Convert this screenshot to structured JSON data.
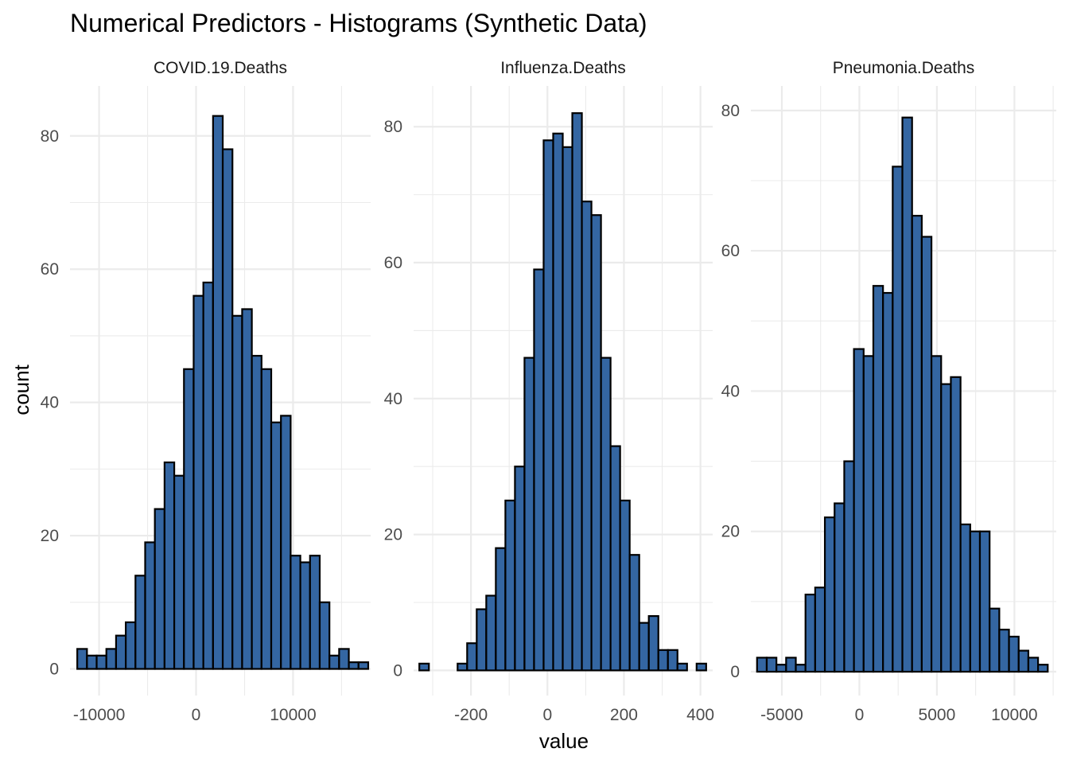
{
  "chart_data": {
    "type": "bar",
    "title": "Numerical Predictors - Histograms (Synthetic Data)",
    "xlabel": "value",
    "ylabel": "count",
    "bar_color": "#3466A2",
    "bar_outline": "#000000",
    "grid": true,
    "facets": [
      {
        "name": "COVID.19.Deaths",
        "xlim": [
          -13000,
          18000
        ],
        "ylim": [
          -4,
          87.5
        ],
        "xticks": [
          -10000,
          0,
          10000
        ],
        "xtick_labels": [
          "-10000",
          "0",
          "10000"
        ],
        "yticks": [
          0,
          20,
          40,
          60,
          80
        ],
        "ytick_labels": [
          "0",
          "20",
          "40",
          "60",
          "80"
        ],
        "bin_start": -12250,
        "bin_width": 1000,
        "counts": [
          3,
          2,
          2,
          3,
          5,
          7,
          14,
          19,
          24,
          31,
          29,
          45,
          56,
          58,
          83,
          78,
          53,
          54,
          47,
          45,
          37,
          38,
          17,
          16,
          17,
          10,
          2,
          3,
          1,
          1
        ]
      },
      {
        "name": "Influenza.Deaths",
        "xlim": [
          -350,
          432
        ],
        "ylim": [
          -3.7,
          86
        ],
        "xticks": [
          -200,
          0,
          200,
          400
        ],
        "xtick_labels": [
          "-200",
          "0",
          "200",
          "400"
        ],
        "yticks": [
          0,
          20,
          40,
          60,
          80
        ],
        "ytick_labels": [
          "0",
          "20",
          "40",
          "60",
          "80"
        ],
        "bin_start": -335,
        "bin_width": 25,
        "counts": [
          1,
          0,
          0,
          0,
          1,
          4,
          9,
          11,
          18,
          25,
          30,
          46,
          59,
          78,
          79,
          77,
          82,
          69,
          67,
          46,
          33,
          25,
          17,
          7,
          8,
          3,
          3,
          1,
          0,
          1
        ]
      },
      {
        "name": "Pneumonia.Deaths",
        "xlim": [
          -7000,
          12700
        ],
        "ylim": [
          -3.4,
          83.5
        ],
        "xticks": [
          -5000,
          0,
          5000,
          10000
        ],
        "xtick_labels": [
          "-5000",
          "0",
          "5000",
          "10000"
        ],
        "yticks": [
          0,
          20,
          40,
          60,
          80
        ],
        "ytick_labels": [
          "0",
          "20",
          "40",
          "60",
          "80"
        ],
        "bin_start": -6600,
        "bin_width": 625,
        "counts": [
          2,
          2,
          1,
          2,
          1,
          11,
          12,
          22,
          24,
          30,
          46,
          45,
          55,
          54,
          72,
          79,
          65,
          62,
          45,
          41,
          42,
          21,
          20,
          20,
          9,
          6,
          5,
          3,
          2,
          1
        ]
      }
    ]
  }
}
